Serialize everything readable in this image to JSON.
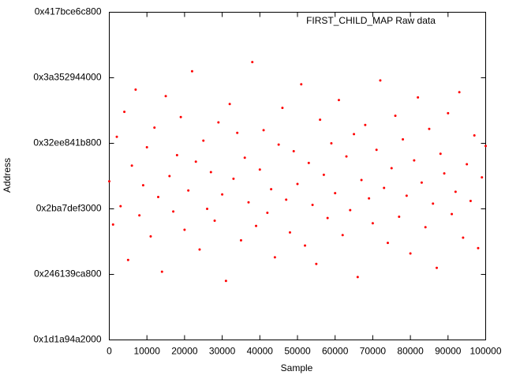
{
  "chart_data": {
    "type": "scatter",
    "title": "FIRST_CHILD_MAP Raw data",
    "x_label": "Sample",
    "y_label": "Address",
    "color": "#ff0000",
    "xlim": [
      0,
      100000
    ],
    "xticks": [
      0,
      10000,
      20000,
      30000,
      40000,
      50000,
      60000,
      70000,
      80000,
      90000,
      100000
    ],
    "ylim": [
      2000000000000,
      4500000000000
    ],
    "yticks": [
      {
        "value": 2000000000000,
        "label": "0x1d1a94a2000"
      },
      {
        "value": 2500000000000,
        "label": "0x246139ca800"
      },
      {
        "value": 3000000000000,
        "label": "0x2ba7def3000"
      },
      {
        "value": 3500000000000,
        "label": "0x32ee841b800"
      },
      {
        "value": 4000000000000,
        "label": "0x3a352944000"
      },
      {
        "value": 4500000000000,
        "label": "0x417bce6c800"
      }
    ],
    "grid": false,
    "x": [
      0,
      1000,
      2000,
      3000,
      4000,
      5000,
      6000,
      7000,
      8000,
      9000,
      10000,
      11000,
      12000,
      13000,
      14000,
      15000,
      16000,
      17000,
      18000,
      19000,
      20000,
      21000,
      22000,
      23000,
      24000,
      25000,
      26000,
      27000,
      28000,
      29000,
      30000,
      31000,
      32000,
      33000,
      34000,
      35000,
      36000,
      37000,
      38000,
      39000,
      40000,
      41000,
      42000,
      43000,
      44000,
      45000,
      46000,
      47000,
      48000,
      49000,
      50000,
      51000,
      52000,
      53000,
      54000,
      55000,
      56000,
      57000,
      58000,
      59000,
      60000,
      61000,
      62000,
      63000,
      64000,
      65000,
      66000,
      67000,
      68000,
      69000,
      70000,
      71000,
      72000,
      73000,
      74000,
      75000,
      76000,
      77000,
      78000,
      79000,
      80000,
      81000,
      82000,
      83000,
      84000,
      85000,
      86000,
      87000,
      88000,
      89000,
      90000,
      91000,
      92000,
      93000,
      94000,
      95000,
      96000,
      97000,
      98000,
      99000,
      100000
    ],
    "values": [
      3210000000000.0,
      2880000000000.0,
      3550000000000.0,
      3020000000000.0,
      3740000000000.0,
      2610000000000.0,
      3330000000000.0,
      3910000000000.0,
      2950000000000.0,
      3180000000000.0,
      3470000000000.0,
      2790000000000.0,
      3620000000000.0,
      3090000000000.0,
      2520000000000.0,
      3860000000000.0,
      3250000000000.0,
      2980000000000.0,
      3410000000000.0,
      3700000000000.0,
      2840000000000.0,
      3140000000000.0,
      4050000000000.0,
      3360000000000.0,
      2690000000000.0,
      3520000000000.0,
      3000000000000.0,
      3280000000000.0,
      2910000000000.0,
      3660000000000.0,
      3110000000000.0,
      2450000000000.0,
      3800000000000.0,
      3230000000000.0,
      3580000000000.0,
      2760000000000.0,
      3390000000000.0,
      3050000000000.0,
      4120000000000.0,
      2870000000000.0,
      3300000000000.0,
      3600000000000.0,
      2970000000000.0,
      3150000000000.0,
      2630000000000.0,
      3490000000000.0,
      3770000000000.0,
      3070000000000.0,
      2820000000000.0,
      3440000000000.0,
      3190000000000.0,
      3950000000000.0,
      2720000000000.0,
      3350000000000.0,
      3030000000000.0,
      2580000000000.0,
      3680000000000.0,
      3260000000000.0,
      2930000000000.0,
      3500000000000.0,
      3120000000000.0,
      3830000000000.0,
      2800000000000.0,
      3400000000000.0,
      2990000000000.0,
      3570000000000.0,
      2480000000000.0,
      3220000000000.0,
      3640000000000.0,
      3080000000000.0,
      2890000000000.0,
      3450000000000.0,
      3980000000000.0,
      3160000000000.0,
      2740000000000.0,
      3310000000000.0,
      3710000000000.0,
      2940000000000.0,
      3530000000000.0,
      3100000000000.0,
      2660000000000.0,
      3370000000000.0,
      3850000000000.0,
      3200000000000.0,
      2860000000000.0,
      3610000000000.0,
      3040000000000.0,
      2550000000000.0,
      3420000000000.0,
      3270000000000.0,
      3730000000000.0,
      2960000000000.0,
      3130000000000.0,
      3890000000000.0,
      2780000000000.0,
      3340000000000.0,
      3060000000000.0,
      3560000000000.0,
      2700000000000.0,
      3240000000000.0,
      3480000000000.0
    ]
  }
}
